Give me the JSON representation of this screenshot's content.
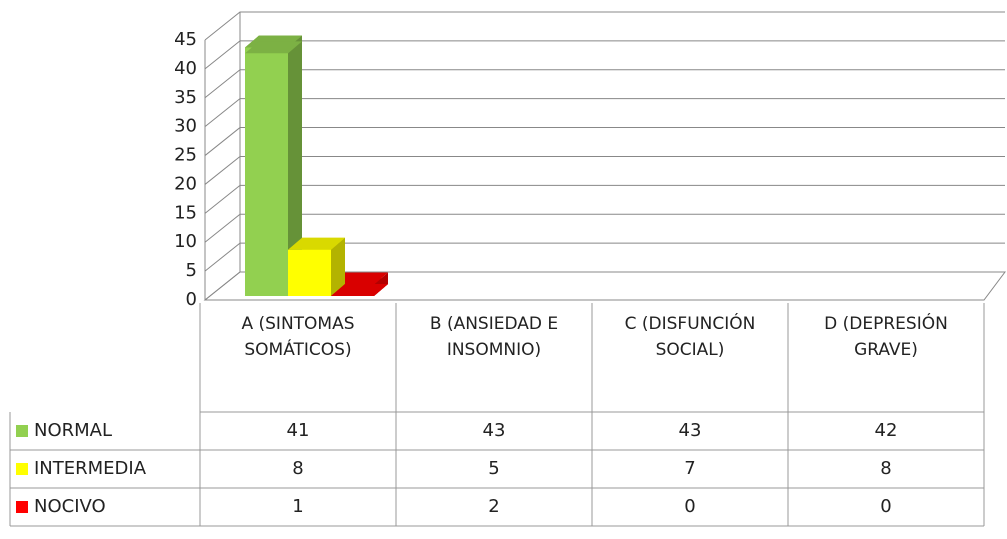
{
  "chart_data": {
    "type": "bar3d",
    "categories": [
      "A (SINTOMAS SOMÁTICOS)",
      "B (ANSIEDAD E INSOMNIO)",
      "C (DISFUNCIÓN SOCIAL)",
      "D (DEPRESIÓN GRAVE)"
    ],
    "series": [
      {
        "name": "NORMAL",
        "color": "#92d050",
        "values": [
          41,
          43,
          43,
          42
        ]
      },
      {
        "name": "INTERMEDIA",
        "color": "#ffff00",
        "values": [
          8,
          5,
          7,
          8
        ]
      },
      {
        "name": "NOCIVO",
        "color": "#ff0000",
        "values": [
          1,
          2,
          0,
          0
        ]
      }
    ],
    "ylim": [
      0,
      45
    ],
    "yticks": [
      0,
      5,
      10,
      15,
      20,
      25,
      30,
      35,
      40,
      45
    ],
    "grid": true
  }
}
